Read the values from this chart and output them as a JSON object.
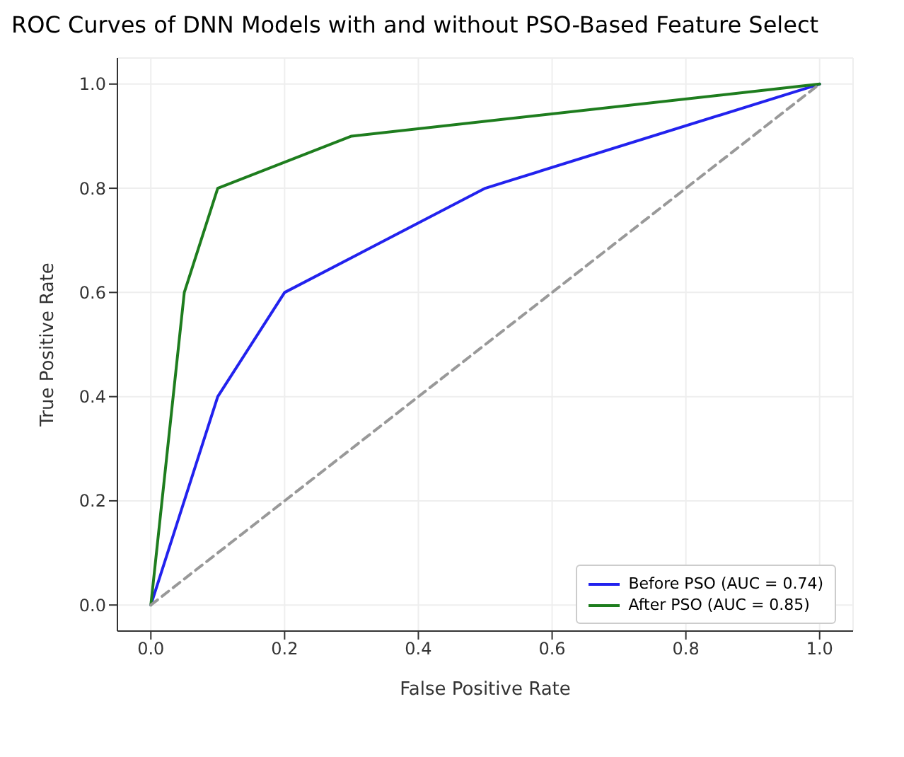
{
  "chart_data": {
    "type": "line",
    "title": "ROC Curves of DNN Models with and without PSO-Based Feature Select",
    "xlabel": "False Positive Rate",
    "ylabel": "True Positive Rate",
    "series": [
      {
        "name": "Before PSO (AUC = 0.74)",
        "color": "#2222ee",
        "x": [
          0,
          0.1,
          0.2,
          0.5,
          1
        ],
        "values": [
          0,
          0.4,
          0.6,
          0.8,
          1
        ]
      },
      {
        "name": "After PSO (AUC = 0.85)",
        "color": "#1e7d1e",
        "x": [
          0,
          0.05,
          0.1,
          0.3,
          1
        ],
        "values": [
          0,
          0.6,
          0.8,
          0.9,
          1
        ]
      },
      {
        "color": "#999999",
        "line_style": "dashed",
        "x": [
          0,
          1
        ],
        "values": [
          0,
          1
        ]
      }
    ],
    "xlim": [
      -0.05,
      1.05
    ],
    "ylim": [
      -0.05,
      1.05
    ],
    "xticks": [
      {
        "value": 0,
        "label": "0.0"
      },
      {
        "value": 0.2,
        "label": "0.2"
      },
      {
        "value": 0.4,
        "label": "0.4"
      },
      {
        "value": 0.6,
        "label": "0.6"
      },
      {
        "value": 0.8,
        "label": "0.8"
      },
      {
        "value": 1,
        "label": "1.0"
      }
    ],
    "yticks": [
      {
        "value": 0,
        "label": "0.0"
      },
      {
        "value": 0.2,
        "label": "0.2"
      },
      {
        "value": 0.4,
        "label": "0.4"
      },
      {
        "value": 0.6,
        "label": "0.6"
      },
      {
        "value": 0.8,
        "label": "0.8"
      },
      {
        "value": 1,
        "label": "1.0"
      }
    ],
    "grid": true,
    "legend": "bottom right",
    "marker": "none",
    "line_style": "solid"
  }
}
